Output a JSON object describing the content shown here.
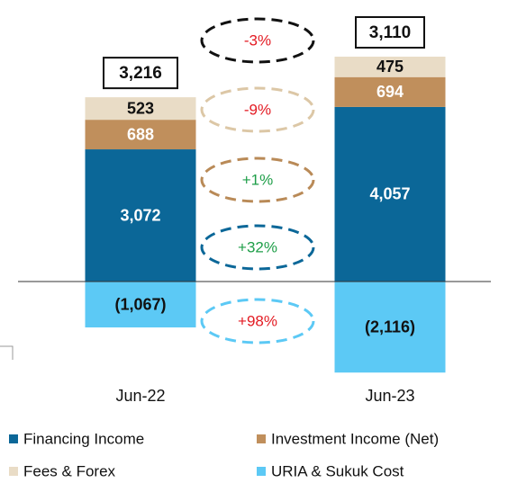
{
  "chart_data": {
    "type": "stacked_bar",
    "categories": [
      "Jun-22",
      "Jun-23"
    ],
    "series": [
      {
        "name": "Financing Income",
        "color": "#0b6798",
        "label_color": "#ffffff",
        "values": [
          3072,
          4057
        ],
        "value_labels": [
          "3,072",
          "4,057"
        ]
      },
      {
        "name": "Investment Income (Net)",
        "color": "#c08f5c",
        "label_color": "#ffffff",
        "values": [
          688,
          694
        ],
        "value_labels": [
          "688",
          "694"
        ]
      },
      {
        "name": "Fees & Forex",
        "color": "#e9dcc6",
        "label_color": "#111111",
        "values": [
          523,
          475
        ],
        "value_labels": [
          "523",
          "475"
        ]
      },
      {
        "name": "URIA & Sukuk Cost",
        "color": "#5cc9f5",
        "label_color": "#111111",
        "values": [
          -1067,
          -2116
        ],
        "value_labels": [
          "(1,067)",
          "(2,116)"
        ]
      }
    ],
    "totals": {
      "values": [
        3216,
        3110
      ],
      "value_labels": [
        "3,216",
        "3,110"
      ]
    },
    "annotations": [
      {
        "text": "-3%",
        "color": "#111111",
        "text_color": "#e31b23"
      },
      {
        "text": "-9%",
        "color": "#dcc7a6",
        "text_color": "#e31b23"
      },
      {
        "text": "+1%",
        "color": "#b98a57",
        "text_color": "#1e9e48"
      },
      {
        "text": "+32%",
        "color": "#0b6798",
        "text_color": "#1e9e48"
      },
      {
        "text": "+98%",
        "color": "#5cc9f5",
        "text_color": "#e31b23"
      }
    ]
  }
}
